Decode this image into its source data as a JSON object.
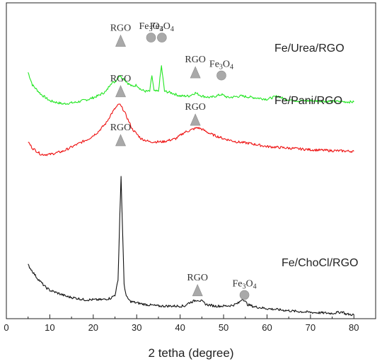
{
  "chart_data": {
    "type": "line",
    "title": "",
    "xlabel": "2 tetha (degree)",
    "ylabel": "",
    "xlim": [
      0,
      85
    ],
    "xticks": [
      "0",
      "10",
      "20",
      "30",
      "40",
      "50",
      "60",
      "70",
      "80"
    ],
    "grid": false,
    "series": [
      {
        "name": "Fe/Urea/RGO",
        "color": "#22e622",
        "x": [
          5,
          6,
          8,
          10,
          13,
          16,
          19,
          21,
          23,
          24,
          25,
          26,
          27,
          28,
          29,
          30,
          31,
          32,
          33,
          33.5,
          34,
          35,
          35.7,
          36.4,
          38,
          40,
          42,
          43.5,
          45,
          47,
          49.5,
          51,
          54,
          57,
          60,
          62.5,
          64,
          67,
          70,
          75,
          80
        ],
        "y": [
          0.78,
          0.74,
          0.71,
          0.69,
          0.68,
          0.685,
          0.695,
          0.705,
          0.72,
          0.745,
          0.75,
          0.77,
          0.76,
          0.745,
          0.735,
          0.74,
          0.725,
          0.72,
          0.72,
          0.77,
          0.72,
          0.72,
          0.8,
          0.72,
          0.715,
          0.705,
          0.705,
          0.715,
          0.705,
          0.7,
          0.71,
          0.7,
          0.705,
          0.7,
          0.695,
          0.705,
          0.695,
          0.69,
          0.69,
          0.688,
          0.686
        ]
      },
      {
        "name": "Fe/Pani/RGO",
        "color": "#ee1111",
        "x": [
          5,
          6,
          8,
          10,
          13,
          16,
          19,
          21,
          23,
          24,
          25,
          26,
          27,
          28,
          29,
          31,
          33,
          36,
          39,
          41,
          43,
          44,
          45,
          47,
          50,
          53,
          56,
          60,
          65,
          70,
          75,
          80
        ],
        "y": [
          0.56,
          0.54,
          0.52,
          0.52,
          0.53,
          0.55,
          0.57,
          0.59,
          0.62,
          0.645,
          0.665,
          0.68,
          0.66,
          0.63,
          0.6,
          0.57,
          0.56,
          0.56,
          0.57,
          0.59,
          0.6,
          0.605,
          0.6,
          0.585,
          0.57,
          0.56,
          0.555,
          0.545,
          0.54,
          0.535,
          0.532,
          0.53
        ]
      },
      {
        "name": "Fe/ChoCl/RGO",
        "color": "#111111",
        "x": [
          5,
          5.5,
          6,
          7,
          8,
          9,
          10,
          12,
          14,
          16,
          18,
          20,
          22,
          24,
          25,
          25.7,
          26.1,
          26.4,
          26.7,
          27.1,
          27.6,
          28.5,
          30,
          32,
          35,
          38,
          41,
          42,
          43,
          44,
          45,
          46,
          48,
          50,
          52,
          53.5,
          54.4,
          55.5,
          57,
          60,
          63,
          66,
          70,
          75,
          77.5,
          78,
          80
        ],
        "y": [
          0.17,
          0.16,
          0.15,
          0.13,
          0.115,
          0.1,
          0.09,
          0.08,
          0.07,
          0.065,
          0.06,
          0.06,
          0.06,
          0.065,
          0.075,
          0.12,
          0.32,
          0.45,
          0.3,
          0.11,
          0.07,
          0.055,
          0.05,
          0.045,
          0.04,
          0.04,
          0.04,
          0.05,
          0.055,
          0.06,
          0.055,
          0.045,
          0.04,
          0.04,
          0.042,
          0.05,
          0.065,
          0.045,
          0.038,
          0.032,
          0.028,
          0.024,
          0.02,
          0.017,
          0.022,
          0.015,
          0.012
        ]
      }
    ],
    "series_labels": [
      {
        "text": "Fe/Urea/RGO"
      },
      {
        "text": "Fe/Pani/RGO"
      },
      {
        "text": "Fe/ChoCl/RGO"
      }
    ],
    "markers": [
      {
        "shape": "triangle",
        "phase": "RGO",
        "x": 26.3,
        "level": 0.88
      },
      {
        "shape": "circle",
        "phase": "Fe3O4",
        "x": 33.3,
        "level": 0.89
      },
      {
        "shape": "circle",
        "phase": "Fe3O4",
        "x": 35.8,
        "level": 0.89
      },
      {
        "shape": "triangle",
        "phase": "RGO",
        "x": 43.5,
        "level": 0.78
      },
      {
        "shape": "circle",
        "phase": "Fe3O4",
        "x": 49.5,
        "level": 0.77
      },
      {
        "shape": "triangle",
        "phase": "RGO",
        "x": 26.3,
        "level": 0.72
      },
      {
        "shape": "triangle",
        "phase": "RGO",
        "x": 43.5,
        "level": 0.63
      },
      {
        "shape": "triangle",
        "phase": "RGO",
        "x": 26.3,
        "level": 0.565
      },
      {
        "shape": "triangle",
        "phase": "RGO",
        "x": 44.0,
        "level": 0.09
      },
      {
        "shape": "circle",
        "phase": "Fe3O4",
        "x": 54.8,
        "level": 0.075
      }
    ],
    "marker_fill": "#a9a9a9"
  }
}
